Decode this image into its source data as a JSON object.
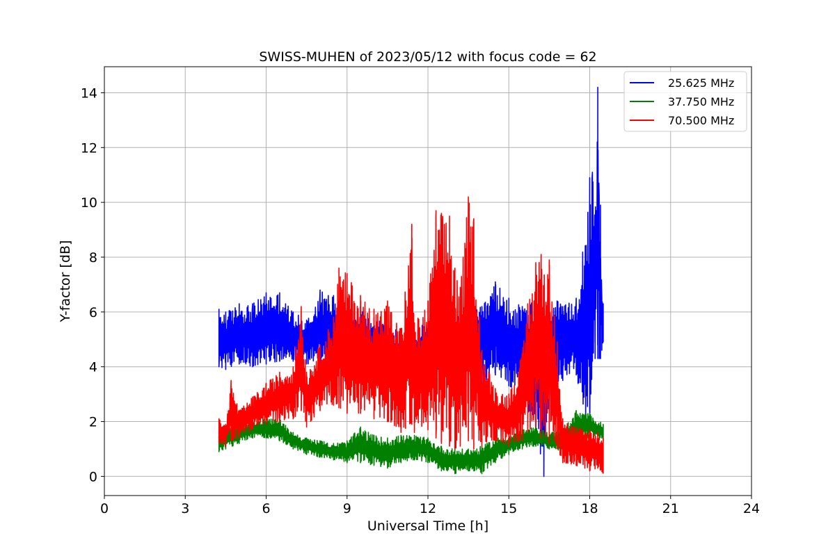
{
  "chart_data": {
    "type": "line",
    "title": "SWISS-MUHEN of 2023/05/12 with focus code = 62",
    "xlabel": "Universal Time [h]",
    "ylabel": "Y-factor [dB]",
    "xlim": [
      0,
      24
    ],
    "ylim": [
      -0.7,
      14.95
    ],
    "xticks": [
      0,
      3,
      6,
      9,
      12,
      15,
      18,
      21,
      24
    ],
    "xtick_labels": [
      "0",
      "3",
      "6",
      "9",
      "12",
      "15",
      "18",
      "21",
      "24"
    ],
    "yticks": [
      0,
      2,
      4,
      6,
      8,
      10,
      12,
      14
    ],
    "ytick_labels": [
      "0",
      "2",
      "4",
      "6",
      "8",
      "10",
      "12",
      "14"
    ],
    "grid": true,
    "legend_position": "top-right",
    "series": [
      {
        "name": "25.625 MHz",
        "color": "#0000ff",
        "x": [
          4.25,
          4.5,
          5.0,
          5.5,
          6.0,
          6.5,
          7.0,
          7.5,
          8.0,
          8.5,
          9.0,
          9.5,
          10.0,
          10.5,
          11.0,
          11.5,
          12.0,
          12.5,
          13.0,
          13.5,
          14.0,
          14.5,
          15.0,
          15.5,
          16.0,
          16.3,
          16.5,
          17.0,
          17.5,
          18.0,
          18.1,
          18.2,
          18.3,
          18.35,
          18.4,
          18.45,
          18.5
        ],
        "min": [
          4.0,
          3.9,
          4.1,
          4.0,
          4.1,
          4.2,
          4.2,
          4.1,
          4.0,
          3.9,
          3.9,
          3.8,
          3.7,
          3.6,
          3.4,
          3.5,
          3.5,
          3.6,
          3.7,
          3.6,
          3.4,
          3.7,
          3.3,
          3.0,
          1.5,
          0.0,
          3.0,
          3.5,
          3.7,
          1.2,
          4.2,
          4.3,
          4.3,
          4.3,
          4.3,
          4.6,
          4.9
        ],
        "max": [
          6.1,
          6.0,
          6.3,
          6.3,
          6.7,
          6.7,
          6.0,
          5.7,
          6.8,
          6.6,
          6.0,
          6.2,
          5.8,
          5.5,
          5.3,
          5.4,
          5.6,
          5.7,
          5.8,
          6.0,
          6.2,
          7.1,
          6.5,
          6.2,
          6.4,
          6.3,
          6.8,
          6.2,
          6.5,
          10.9,
          11.1,
          9.4,
          14.2,
          10.2,
          9.9,
          6.5,
          6.3
        ]
      },
      {
        "name": "37.750 MHz",
        "color": "#008000",
        "x": [
          4.25,
          4.5,
          5.0,
          5.5,
          6.0,
          6.5,
          7.0,
          7.5,
          8.0,
          8.5,
          9.0,
          9.5,
          10.0,
          10.5,
          11.0,
          11.5,
          12.0,
          12.5,
          13.0,
          13.5,
          14.0,
          14.5,
          15.0,
          15.5,
          16.0,
          16.5,
          17.0,
          17.5,
          18.0,
          18.5
        ],
        "min": [
          0.9,
          1.0,
          1.2,
          1.4,
          1.4,
          1.3,
          1.0,
          0.8,
          0.7,
          0.6,
          0.5,
          0.5,
          0.4,
          0.3,
          0.5,
          0.6,
          0.5,
          0.2,
          0.1,
          0.2,
          0.1,
          0.5,
          0.8,
          1.0,
          1.1,
          1.0,
          0.9,
          1.2,
          1.4,
          1.3
        ],
        "max": [
          1.5,
          1.8,
          1.9,
          2.0,
          2.1,
          2.1,
          1.6,
          1.4,
          1.3,
          1.2,
          1.3,
          1.8,
          1.5,
          1.4,
          1.5,
          1.5,
          1.4,
          1.1,
          1.0,
          1.0,
          1.1,
          1.4,
          1.5,
          1.7,
          1.8,
          1.6,
          1.7,
          2.4,
          2.3,
          1.9
        ]
      },
      {
        "name": "70.500 MHz",
        "color": "#ff0000",
        "x": [
          4.25,
          4.5,
          4.7,
          5.0,
          5.5,
          6.0,
          6.5,
          7.0,
          7.3,
          7.5,
          8.0,
          8.5,
          8.7,
          9.0,
          9.5,
          10.0,
          10.5,
          11.0,
          11.4,
          11.5,
          12.0,
          12.3,
          12.5,
          12.8,
          13.0,
          13.2,
          13.5,
          13.7,
          14.0,
          14.5,
          15.0,
          15.5,
          15.7,
          16.0,
          16.2,
          16.5,
          16.8,
          17.0,
          17.5,
          18.0,
          18.3,
          18.5
        ],
        "min": [
          1.2,
          1.1,
          1.3,
          1.4,
          1.7,
          1.9,
          2.0,
          2.1,
          2.4,
          1.8,
          2.4,
          2.6,
          2.5,
          2.3,
          2.3,
          2.1,
          2.0,
          1.6,
          1.9,
          1.6,
          1.7,
          1.4,
          1.2,
          1.1,
          1.0,
          1.1,
          1.3,
          1.0,
          1.1,
          1.3,
          1.1,
          1.3,
          1.6,
          1.8,
          1.4,
          1.2,
          1.0,
          0.5,
          0.4,
          0.2,
          0.3,
          0.1
        ],
        "max": [
          2.1,
          1.9,
          3.5,
          2.4,
          2.9,
          3.4,
          3.8,
          4.0,
          6.2,
          3.8,
          4.8,
          5.8,
          7.6,
          7.4,
          6.6,
          6.1,
          6.4,
          5.4,
          9.2,
          5.6,
          6.4,
          9.7,
          9.6,
          9.5,
          7.6,
          6.9,
          10.2,
          9.4,
          4.6,
          3.2,
          3.0,
          4.5,
          6.3,
          7.8,
          8.1,
          7.9,
          4.9,
          2.1,
          1.8,
          1.7,
          1.6,
          1.4
        ]
      }
    ]
  }
}
